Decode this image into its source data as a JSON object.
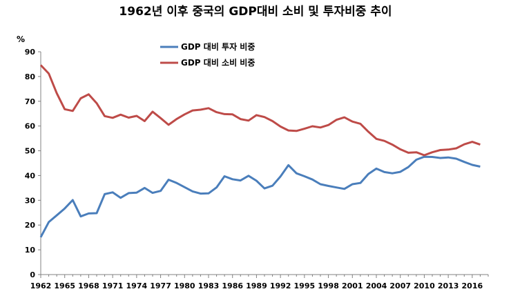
{
  "chart_data": {
    "type": "line",
    "title": "1962년 이후 중국의 GDP대비 소비 및 투자비중 추이",
    "ylabel": "%",
    "xlabel": "",
    "ylim": [
      0,
      90
    ],
    "yticks": [
      0,
      10,
      20,
      30,
      40,
      50,
      60,
      70,
      80,
      90
    ],
    "xlim": [
      1962,
      2018
    ],
    "xticks": [
      1962,
      1965,
      1968,
      1971,
      1974,
      1977,
      1980,
      1983,
      1986,
      1989,
      1992,
      1995,
      1998,
      2001,
      2004,
      2007,
      2010,
      2013,
      2016
    ],
    "grid": false,
    "legend_position": "top-center",
    "x": [
      1962,
      1963,
      1964,
      1965,
      1966,
      1967,
      1968,
      1969,
      1970,
      1971,
      1972,
      1973,
      1974,
      1975,
      1976,
      1977,
      1978,
      1979,
      1980,
      1981,
      1982,
      1983,
      1984,
      1985,
      1986,
      1987,
      1988,
      1989,
      1990,
      1991,
      1992,
      1993,
      1994,
      1995,
      1996,
      1997,
      1998,
      1999,
      2000,
      2001,
      2002,
      2003,
      2004,
      2005,
      2006,
      2007,
      2008,
      2009,
      2010,
      2011,
      2012,
      2013,
      2014,
      2015,
      2016,
      2017
    ],
    "series": [
      {
        "name": "GDP 대비 투자 비중",
        "color": "#4A7EBB",
        "values": [
          15.1,
          21.2,
          23.9,
          26.7,
          30.1,
          23.5,
          24.7,
          24.8,
          32.5,
          33.2,
          31.0,
          32.9,
          33.1,
          35.0,
          33.0,
          33.8,
          38.3,
          37.0,
          35.3,
          33.6,
          32.7,
          32.8,
          35.2,
          39.7,
          38.5,
          38.0,
          39.9,
          37.9,
          34.8,
          35.9,
          39.6,
          44.2,
          40.9,
          39.7,
          38.4,
          36.5,
          35.8,
          35.2,
          34.6,
          36.5,
          37.0,
          40.6,
          42.8,
          41.4,
          40.9,
          41.5,
          43.4,
          46.4,
          47.6,
          47.5,
          47.1,
          47.3,
          46.8,
          45.5,
          44.3,
          43.6
        ]
      },
      {
        "name": "GDP 대비 소비 비중",
        "color": "#BE4B48",
        "values": [
          84.6,
          81.2,
          73.3,
          66.8,
          66.1,
          71.2,
          72.8,
          69.2,
          64.0,
          63.3,
          64.6,
          63.4,
          64.1,
          62.0,
          65.8,
          63.2,
          60.5,
          62.8,
          64.7,
          66.3,
          66.6,
          67.2,
          65.6,
          64.8,
          64.7,
          62.8,
          62.2,
          64.4,
          63.6,
          62.0,
          59.8,
          58.2,
          58.0,
          58.9,
          59.9,
          59.4,
          60.4,
          62.5,
          63.5,
          61.8,
          60.9,
          57.7,
          54.8,
          54.0,
          52.5,
          50.6,
          49.2,
          49.4,
          48.2,
          49.4,
          50.3,
          50.5,
          51.0,
          52.6,
          53.6,
          52.5
        ]
      }
    ]
  }
}
